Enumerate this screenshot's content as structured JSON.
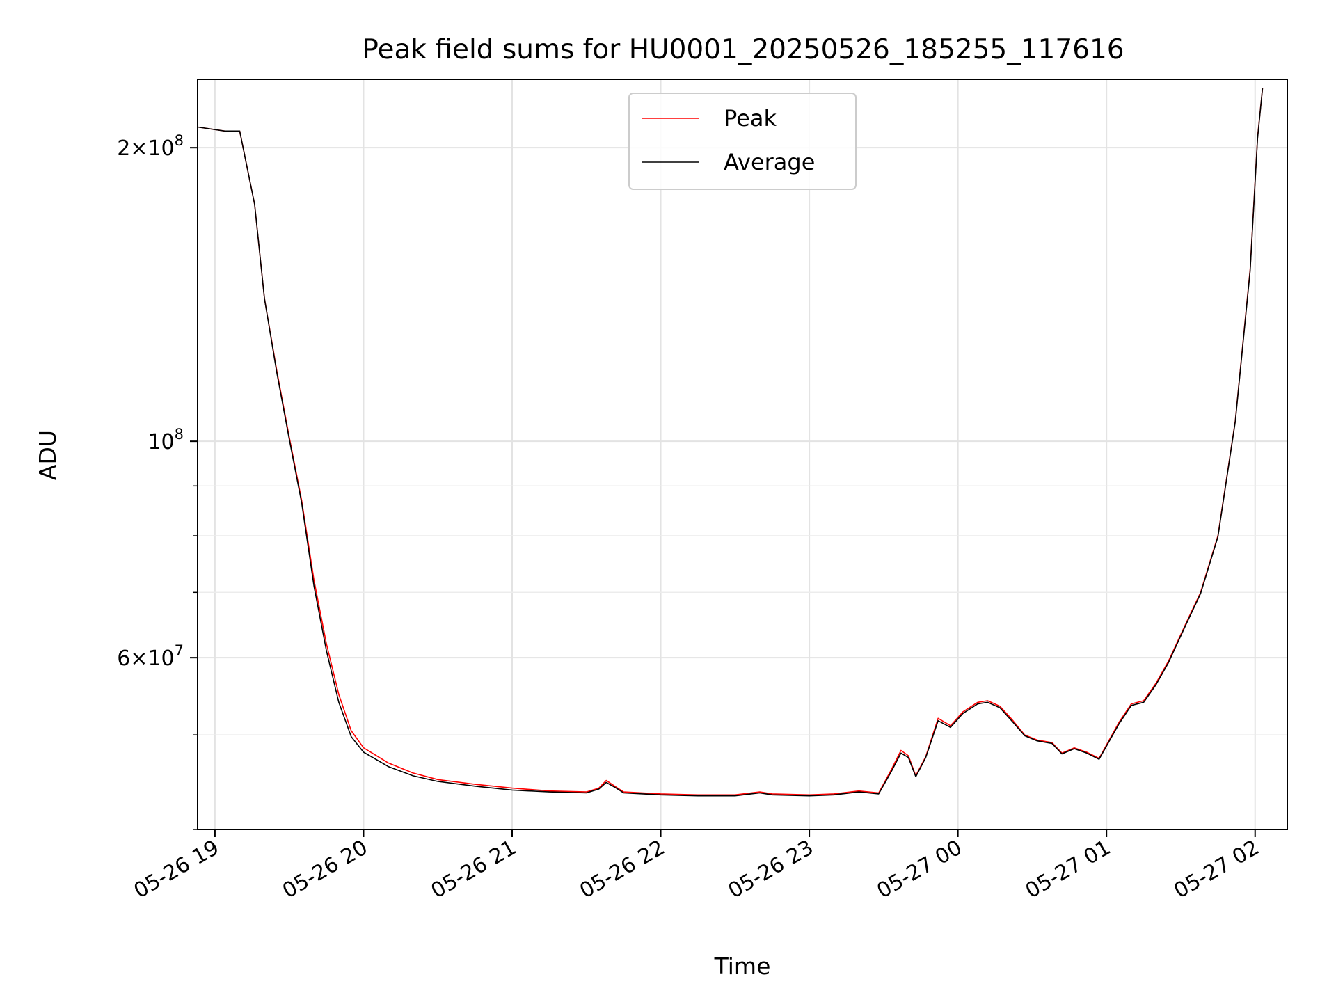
{
  "chart_data": {
    "type": "line",
    "title": "Peak field sums for HU0001_20250526_185255_117616",
    "xlabel": "Time",
    "ylabel": "ADU",
    "y_scale": "log",
    "grid": true,
    "legend_position": "top-center",
    "xlim": [
      "2025-05-26T18:53",
      "2025-05-27T02:13"
    ],
    "ylim": [
      40000000,
      235000000
    ],
    "x_ticks": [
      {
        "t": "2025-05-26T19:00",
        "label": "05-26 19"
      },
      {
        "t": "2025-05-26T20:00",
        "label": "05-26 20"
      },
      {
        "t": "2025-05-26T21:00",
        "label": "05-26 21"
      },
      {
        "t": "2025-05-26T22:00",
        "label": "05-26 22"
      },
      {
        "t": "2025-05-26T23:00",
        "label": "05-26 23"
      },
      {
        "t": "2025-05-27T00:00",
        "label": "05-27 00"
      },
      {
        "t": "2025-05-27T01:00",
        "label": "05-27 01"
      },
      {
        "t": "2025-05-27T02:00",
        "label": "05-27 02"
      }
    ],
    "y_ticks": [
      {
        "v": 200000000,
        "base": "2×10",
        "exp": "8"
      },
      {
        "v": 100000000,
        "base": "10",
        "exp": "8"
      },
      {
        "v": 60000000,
        "base": "6×10",
        "exp": "7"
      }
    ],
    "series": [
      {
        "name": "Peak",
        "color": "#ff0000",
        "points": [
          [
            "2025-05-26T18:53",
            210000000
          ],
          [
            "2025-05-26T19:04",
            208000000
          ],
          [
            "2025-05-26T19:10",
            208000000
          ],
          [
            "2025-05-26T19:16",
            175000000
          ],
          [
            "2025-05-26T19:20",
            140000000
          ],
          [
            "2025-05-26T19:25",
            118000000
          ],
          [
            "2025-05-26T19:30",
            101000000
          ],
          [
            "2025-05-26T19:35",
            87000000
          ],
          [
            "2025-05-26T19:40",
            72000000
          ],
          [
            "2025-05-26T19:45",
            62000000
          ],
          [
            "2025-05-26T19:50",
            55000000
          ],
          [
            "2025-05-26T19:55",
            50500000
          ],
          [
            "2025-05-26T20:00",
            48500000
          ],
          [
            "2025-05-26T20:10",
            46800000
          ],
          [
            "2025-05-26T20:20",
            45700000
          ],
          [
            "2025-05-26T20:30",
            45000000
          ],
          [
            "2025-05-26T20:45",
            44500000
          ],
          [
            "2025-05-26T21:00",
            44100000
          ],
          [
            "2025-05-26T21:15",
            43800000
          ],
          [
            "2025-05-26T21:30",
            43700000
          ],
          [
            "2025-05-26T21:35",
            44100000
          ],
          [
            "2025-05-26T21:38",
            44900000
          ],
          [
            "2025-05-26T21:42",
            44200000
          ],
          [
            "2025-05-26T21:45",
            43700000
          ],
          [
            "2025-05-26T22:00",
            43500000
          ],
          [
            "2025-05-26T22:15",
            43400000
          ],
          [
            "2025-05-26T22:30",
            43400000
          ],
          [
            "2025-05-26T22:40",
            43700000
          ],
          [
            "2025-05-26T22:45",
            43500000
          ],
          [
            "2025-05-26T23:00",
            43400000
          ],
          [
            "2025-05-26T23:10",
            43500000
          ],
          [
            "2025-05-26T23:20",
            43800000
          ],
          [
            "2025-05-26T23:28",
            43600000
          ],
          [
            "2025-05-26T23:33",
            46000000
          ],
          [
            "2025-05-26T23:37",
            48200000
          ],
          [
            "2025-05-26T23:40",
            47600000
          ],
          [
            "2025-05-26T23:43",
            45400000
          ],
          [
            "2025-05-26T23:47",
            47500000
          ],
          [
            "2025-05-26T23:52",
            52000000
          ],
          [
            "2025-05-26T23:57",
            51100000
          ],
          [
            "2025-05-27T00:02",
            52800000
          ],
          [
            "2025-05-27T00:08",
            54000000
          ],
          [
            "2025-05-27T00:12",
            54200000
          ],
          [
            "2025-05-27T00:17",
            53500000
          ],
          [
            "2025-05-27T00:22",
            51800000
          ],
          [
            "2025-05-27T00:27",
            50000000
          ],
          [
            "2025-05-27T00:32",
            49400000
          ],
          [
            "2025-05-27T00:38",
            49100000
          ],
          [
            "2025-05-27T00:42",
            47900000
          ],
          [
            "2025-05-27T00:47",
            48500000
          ],
          [
            "2025-05-27T00:52",
            48000000
          ],
          [
            "2025-05-27T00:57",
            47300000
          ],
          [
            "2025-05-27T01:05",
            51500000
          ],
          [
            "2025-05-27T01:10",
            53800000
          ],
          [
            "2025-05-27T01:15",
            54200000
          ],
          [
            "2025-05-27T01:20",
            56500000
          ],
          [
            "2025-05-27T01:25",
            59500000
          ],
          [
            "2025-05-27T01:32",
            65000000
          ],
          [
            "2025-05-27T01:38",
            70000000
          ],
          [
            "2025-05-27T01:45",
            80000000
          ],
          [
            "2025-05-27T01:52",
            105000000
          ],
          [
            "2025-05-27T01:58",
            150000000
          ],
          [
            "2025-05-27T02:01",
            205000000
          ],
          [
            "2025-05-27T02:03",
            230000000
          ]
        ]
      },
      {
        "name": "Average",
        "color": "#000000",
        "points": [
          [
            "2025-05-26T18:53",
            210000000
          ],
          [
            "2025-05-26T19:04",
            208000000
          ],
          [
            "2025-05-26T19:10",
            208000000
          ],
          [
            "2025-05-26T19:16",
            175000000
          ],
          [
            "2025-05-26T19:20",
            140000000
          ],
          [
            "2025-05-26T19:25",
            117500000
          ],
          [
            "2025-05-26T19:30",
            100500000
          ],
          [
            "2025-05-26T19:35",
            86500000
          ],
          [
            "2025-05-26T19:40",
            71000000
          ],
          [
            "2025-05-26T19:45",
            61000000
          ],
          [
            "2025-05-26T19:50",
            54000000
          ],
          [
            "2025-05-26T19:55",
            49800000
          ],
          [
            "2025-05-26T20:00",
            48000000
          ],
          [
            "2025-05-26T20:10",
            46400000
          ],
          [
            "2025-05-26T20:20",
            45400000
          ],
          [
            "2025-05-26T20:30",
            44800000
          ],
          [
            "2025-05-26T20:45",
            44300000
          ],
          [
            "2025-05-26T21:00",
            43900000
          ],
          [
            "2025-05-26T21:15",
            43700000
          ],
          [
            "2025-05-26T21:30",
            43600000
          ],
          [
            "2025-05-26T21:35",
            44000000
          ],
          [
            "2025-05-26T21:38",
            44700000
          ],
          [
            "2025-05-26T21:42",
            44100000
          ],
          [
            "2025-05-26T21:45",
            43600000
          ],
          [
            "2025-05-26T22:00",
            43400000
          ],
          [
            "2025-05-26T22:15",
            43300000
          ],
          [
            "2025-05-26T22:30",
            43300000
          ],
          [
            "2025-05-26T22:40",
            43600000
          ],
          [
            "2025-05-26T22:45",
            43400000
          ],
          [
            "2025-05-26T23:00",
            43300000
          ],
          [
            "2025-05-26T23:10",
            43400000
          ],
          [
            "2025-05-26T23:20",
            43700000
          ],
          [
            "2025-05-26T23:28",
            43500000
          ],
          [
            "2025-05-26T23:33",
            45800000
          ],
          [
            "2025-05-26T23:37",
            47900000
          ],
          [
            "2025-05-26T23:40",
            47400000
          ],
          [
            "2025-05-26T23:43",
            45300000
          ],
          [
            "2025-05-26T23:47",
            47400000
          ],
          [
            "2025-05-26T23:52",
            51700000
          ],
          [
            "2025-05-26T23:57",
            50900000
          ],
          [
            "2025-05-27T00:02",
            52600000
          ],
          [
            "2025-05-27T00:08",
            53800000
          ],
          [
            "2025-05-27T00:12",
            54000000
          ],
          [
            "2025-05-27T00:17",
            53300000
          ],
          [
            "2025-05-27T00:22",
            51600000
          ],
          [
            "2025-05-27T00:27",
            49900000
          ],
          [
            "2025-05-27T00:32",
            49300000
          ],
          [
            "2025-05-27T00:38",
            49000000
          ],
          [
            "2025-05-27T00:42",
            47800000
          ],
          [
            "2025-05-27T00:47",
            48400000
          ],
          [
            "2025-05-27T00:52",
            47900000
          ],
          [
            "2025-05-27T00:57",
            47200000
          ],
          [
            "2025-05-27T01:05",
            51300000
          ],
          [
            "2025-05-27T01:10",
            53600000
          ],
          [
            "2025-05-27T01:15",
            54000000
          ],
          [
            "2025-05-27T01:20",
            56300000
          ],
          [
            "2025-05-27T01:25",
            59300000
          ],
          [
            "2025-05-27T01:32",
            64800000
          ],
          [
            "2025-05-27T01:38",
            69800000
          ],
          [
            "2025-05-27T01:45",
            79800000
          ],
          [
            "2025-05-27T01:52",
            104800000
          ],
          [
            "2025-05-27T01:58",
            149500000
          ],
          [
            "2025-05-27T02:01",
            204500000
          ],
          [
            "2025-05-27T02:03",
            230000000
          ]
        ]
      }
    ]
  }
}
